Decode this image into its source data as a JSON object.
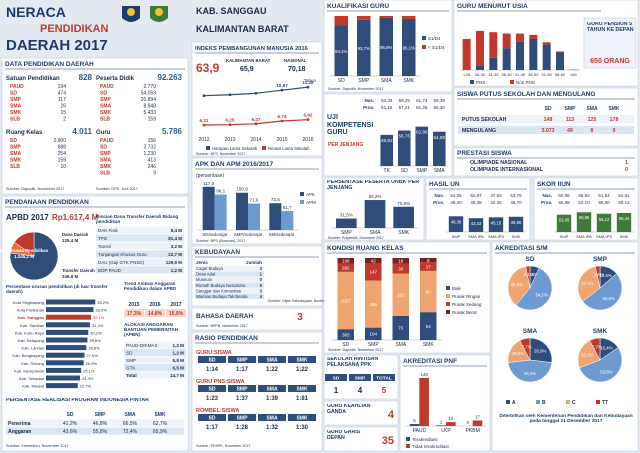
{
  "header": {
    "title_1": "NERACA",
    "title_2": "PENDIDIKAN",
    "title_3": "DAERAH 2017",
    "region": "KAB. SANGGAU",
    "province": "KALIMANTAN BARAT"
  },
  "data_pendidikan": {
    "title": "DATA PENDIDIKAN DAERAH",
    "satuan": {
      "label": "Satuan Pendidikan",
      "total": "828",
      "rows": [
        [
          "PAUD",
          "194"
        ],
        [
          "SD",
          "474"
        ],
        [
          "SMP",
          "117"
        ],
        [
          "SMA",
          "26"
        ],
        [
          "SMK",
          "15"
        ],
        [
          "SLB",
          "2"
        ]
      ]
    },
    "peserta": {
      "label": "Peserta Didik",
      "total": "92.263",
      "rows": [
        [
          "PAUD",
          "2.770"
        ],
        [
          "SD",
          "54.059"
        ],
        [
          "SMP",
          "20.894"
        ],
        [
          "SMA",
          "8.948"
        ],
        [
          "SMK",
          "5.433"
        ],
        [
          "SLB",
          "159"
        ]
      ]
    },
    "ruang": {
      "label": "Ruang Kelas",
      "total": "4.011",
      "rows": [
        [
          "SD",
          "2.900"
        ],
        [
          "SMP",
          "688"
        ],
        [
          "SMA",
          "254"
        ],
        [
          "SMK",
          "159"
        ],
        [
          "SLB",
          "10"
        ]
      ]
    },
    "guru": {
      "label": "Guru",
      "total": "5.786",
      "rows": [
        [
          "PAUD",
          "156"
        ],
        [
          "SD",
          "3.732"
        ],
        [
          "SMP",
          "1.230"
        ],
        [
          "SMA",
          "413"
        ],
        [
          "SMK",
          "246"
        ],
        [
          "SLB",
          "9"
        ]
      ]
    },
    "source_1": "Sumber: Dapodik, November 2017",
    "source_2": "Sumber: DPS, Juni 2017"
  },
  "pendanaan": {
    "title": "PENDANAAN PENDIDIKAN",
    "apbd_label": "APBD 2017",
    "apbd_total": "Rp1.617,4 M",
    "pie": {
      "type": "pie",
      "labels": [
        "Non Urusan Pendidikan",
        "Dana Daerah",
        "Transfer Daerah"
      ],
      "values": [
        1245.2,
        125.4,
        246.8
      ],
      "value_labels": [
        "1.245,2 M",
        "125,4 M",
        "246,8 M"
      ],
      "colors": [
        "#2e4d7b",
        "#e8743b",
        "#c0392b"
      ]
    },
    "rincian_title": "Rincian Dana Transfer Daerah Bidang pendidikan",
    "rincian": [
      [
        "DAK Fisik",
        "8,4 M"
      ],
      [
        "TPG",
        "81,4 M"
      ],
      [
        "Tamsil",
        "3,2 M"
      ],
      [
        "Tunjangan Khusus Guru",
        "22,7 M"
      ],
      [
        "DAU (Gaji GTK PNSD)",
        "129,9 M"
      ],
      [
        "BOP PAUD",
        "1,2 M"
      ]
    ],
    "urusan": {
      "type": "bar",
      "title": "Persentase urusan pendidikan (di luar transfer daerah)",
      "categories": [
        "Kota Singkawang",
        "Kota Pontianak",
        "Kab. Sanggau",
        "Kab. Sambas",
        "Kab. Kubu Raya",
        "Kab. Ketapang",
        "Kab. Landak",
        "Kab. Bengkayang",
        "Kab. Sintang",
        "Kab. Mempawah",
        "Kab. Sekadau",
        "Kab. Melawi"
      ],
      "values": [
        35.2,
        33.9,
        32.1,
        31.4,
        30.2,
        29.6,
        28.8,
        27.5,
        26.9,
        25.1,
        24.3,
        22.7
      ],
      "value_labels": [
        "35,2%",
        "33,9%",
        "32,1%",
        "31,4%",
        "30,2%",
        "29,6%",
        "28,8%",
        "27,5%",
        "26,9%",
        "25,1%",
        "24,3%",
        "22,7%"
      ],
      "xlim": [
        0,
        40
      ],
      "color": "#2e4d7b",
      "highlight": 2,
      "highlight_color": "#c0392b"
    },
    "trend": {
      "title": "Trend Alokasi Anggaran Pendidikan dalam APBD",
      "years": [
        "2015",
        "2016",
        "2017"
      ],
      "values": [
        "17,3%",
        "14,8%",
        "15,0%"
      ]
    },
    "apbn": {
      "title": "ALOKASI ANGGARAN BANTUAN PEMERINTAH (APBN)",
      "rows": [
        [
          "PAUD-DIKMAS",
          "1,2 M"
        ],
        [
          "SD",
          "1,2 M"
        ],
        [
          "SMP",
          "5,8 M"
        ],
        [
          "GTK",
          "6,5 M"
        ],
        [
          "Total",
          "14,7 M"
        ]
      ]
    },
    "pip": {
      "title": "PERSENTASE REALISASI PROGRAM INDONESIA PINTAR",
      "header": [
        "SD",
        "SMP",
        "SMA",
        "SMK"
      ],
      "rows": [
        [
          "Penerima",
          "41,2%",
          "46,8%",
          "66,5%",
          "62,7%"
        ],
        [
          "Anggaran",
          "43,6%",
          "55,8%",
          "72,4%",
          "65,9%"
        ]
      ]
    },
    "source": "Sumber: Kemenkeu, November 2017"
  },
  "ipm": {
    "title": "INDEKS PEMBANGUNAN MANUSIA 2016",
    "value": "63,9",
    "prov_label": "KALIMANTAN BARAT",
    "prov_value": "65,9",
    "nas_label": "NASIONAL",
    "nas_value": "70,18",
    "chart": {
      "type": "line",
      "x": [
        "2012",
        "2013",
        "2014",
        "2015",
        "2016"
      ],
      "ylim": [
        5,
        12.5
      ],
      "unit": "Tahun",
      "series": [
        {
          "name": "Harapan Lama Sekolah",
          "color": "#2e4d7b",
          "values": [
            10.13,
            10.26,
            10.45,
            10.87,
            11.28
          ],
          "value_labels": [
            null,
            null,
            null,
            "10,87",
            "11,28"
          ]
        },
        {
          "name": "Rerata Lama Sekolah",
          "color": "#c0392b",
          "values": [
            6.21,
            6.25,
            6.37,
            6.74,
            6.92
          ],
          "value_labels": [
            "6,21",
            "6,25",
            "6,37",
            "6,74",
            "6,92"
          ]
        }
      ]
    },
    "source": "Sumber: BPS, November 2017"
  },
  "apk": {
    "type": "bar",
    "title": "APK DAN APM 2016/2017",
    "subtitle": "(persentase)",
    "categories": [
      "SD/sederajat",
      "SMP/sederajat",
      "SM/sederajat"
    ],
    "ylim": [
      0,
      130
    ],
    "series": [
      {
        "name": "APK",
        "color": "#2e4d7b",
        "values": [
          117.0,
          100.9,
          72.5
        ],
        "value_labels": [
          "117,0",
          "100,9",
          "72,5"
        ]
      },
      {
        "name": "APM",
        "color": "#6d9bd1",
        "values": [
          96.1,
          71.6,
          51.7
        ],
        "value_labels": [
          "96,1",
          "71,6",
          "51,7"
        ]
      }
    ],
    "source": "Sumber: BPS (Susenas), 2017"
  },
  "kebudayaan": {
    "title": "KEBUDAYAAN",
    "header": [
      "Jenis",
      "Jumlah"
    ],
    "rows": [
      [
        "Cagar Budaya",
        "3"
      ],
      [
        "Desa Adat",
        "1"
      ],
      [
        "Museum",
        "0"
      ],
      [
        "Rumah Budaya Nusantara",
        "0"
      ],
      [
        "Sanggar dan Komunitas",
        "3"
      ],
      [
        "Warisan Budaya Tak Benda",
        "4"
      ]
    ],
    "source": "Sumber: Ditjen Kebudayaan, November 2017"
  },
  "bahasa": {
    "title": "BAHASA DAERAH",
    "value": "3",
    "source": "Sumber: BPPB, November 2017"
  },
  "rasio": {
    "title": "RASIO PENDIDIKAN",
    "header": [
      "SD",
      "SMP",
      "SMA",
      "SMK"
    ],
    "groups": [
      {
        "label": "GURU:SISWA",
        "values": [
          "1:14",
          "1:17",
          "1:22",
          "1:22"
        ]
      },
      {
        "label": "GURU PNS:SISWA",
        "values": [
          "1:23",
          "1:37",
          "1:39",
          "1:81"
        ]
      },
      {
        "label": "ROMBEL:SISWA",
        "values": [
          "1:17",
          "1:28",
          "1:32",
          "1:30"
        ]
      }
    ],
    "source": "Sumber: PDSPK, November 2017"
  },
  "kualifikasi": {
    "type": "bar",
    "stacked": true,
    "title": "KUALIFIKASI GURU",
    "categories": [
      "SD",
      "SMP",
      "SMA",
      "SMK"
    ],
    "ylim": [
      0,
      100
    ],
    "series": [
      {
        "name": "S1/D4",
        "color": "#2e4d7b",
        "values": [
          84.1,
          93.7,
          96.8,
          95.1
        ],
        "value_labels": [
          "84,1%",
          "93,7%",
          "96,8%",
          "95,1%"
        ]
      },
      {
        "name": "< S1/D4",
        "color": "#c0392b",
        "values": [
          15.9,
          6.3,
          3.2,
          4.9
        ]
      }
    ],
    "source": "Sumber: Dapodik, November 2017"
  },
  "ukg": {
    "type": "bar",
    "title": "UJI KOMPETENSI GURU",
    "subtitle": "PER JENJANG",
    "categories": [
      "TK",
      "SD",
      "SMP",
      "SMA"
    ],
    "ylim": [
      0,
      80
    ],
    "color": "#2e4d7b",
    "values": [
      49.82,
      56.75,
      62.95,
      54.8
    ],
    "value_labels": [
      "49,82",
      "56,75",
      "62,95",
      "54,80"
    ],
    "compare": [
      [
        "Nas.",
        "54,33",
        "59,25",
        "61,74",
        "58,38"
      ],
      [
        "Prov.",
        "51,15",
        "57,21",
        "61,26",
        "55,30"
      ]
    ]
  },
  "unbk": {
    "type": "bar",
    "title": "PERSENTASE PESERTA UNBK PER JENJANG",
    "categories": [
      "SMP",
      "SMA",
      "SMK"
    ],
    "ylim": [
      0,
      100
    ],
    "color": "#2e4d7b",
    "values": [
      31.5,
      93.2,
      70.8
    ],
    "value_labels": [
      "31,5%",
      "93,2%",
      "70,8%"
    ],
    "source": "Sumber: Puspendik, November 2017"
  },
  "hasil_un": {
    "type": "bar",
    "title": "HASIL UN",
    "categories": [
      "SMP",
      "SMA IPA",
      "SMA IPS",
      "SMK"
    ],
    "ylim": [
      0,
      80
    ],
    "color": "#2e4d7b",
    "values": [
      48.38,
      42.43,
      45.15,
      46.9
    ],
    "value_labels": [
      "48,38",
      "42,43",
      "45,15",
      "46,90"
    ],
    "compare": [
      [
        "Nas.",
        "54,25",
        "52,87",
        "47,93",
        "53,75"
      ],
      [
        "Prov.",
        "46,40",
        "45,38",
        "42,35",
        "46,70"
      ]
    ]
  },
  "iiun": {
    "type": "bar",
    "title": "SKOR IIUN",
    "categories": [
      "SMP",
      "SMA IPA",
      "SMA IPS",
      "SMK"
    ],
    "ylim": [
      0,
      80
    ],
    "color": "#3f7a3a",
    "values": [
      53.45,
      60.85,
      56.12,
      58.44
    ],
    "value_labels": [
      "53,45",
      "60,85",
      "56,12",
      "58,44"
    ],
    "compare": [
      [
        "Nas.",
        "60,95",
        "65,92",
        "61,54",
        "62,61"
      ],
      [
        "Prov.",
        "55,98",
        "62,10",
        "58,90",
        "60,12"
      ]
    ]
  },
  "guru_usia": {
    "type": "bar",
    "stacked": true,
    "title": "GURU MENURUT USIA",
    "categories": [
      "<26",
      "26-30",
      "31-35",
      "36-40",
      "41-45",
      "46-50",
      "51-55",
      "56-60",
      ">60"
    ],
    "ylim": [
      0,
      800
    ],
    "series": [
      {
        "name": "PNS",
        "color": "#2e4d7b",
        "values": [
          10,
          60,
          180,
          320,
          420,
          460,
          380,
          260,
          5
        ]
      },
      {
        "name": "Non PNS",
        "color": "#c0392b",
        "values": [
          450,
          520,
          380,
          220,
          120,
          60,
          30,
          15,
          2
        ]
      }
    ],
    "pensiun_label": "GURU PENSIUN 5 TAHUN KE DEPAN",
    "pensiun_value": "650 ORANG"
  },
  "putus": {
    "title": "SISWA PUTUS SEKOLAH DAN MENGULANG",
    "header": [
      "SD",
      "SMP",
      "SMA",
      "SMK"
    ],
    "rows": [
      [
        "PUTUS SEKOLAH",
        "148",
        "113",
        "125",
        "178"
      ],
      [
        "MENGULANG",
        "3.073",
        "49",
        "8",
        "9"
      ]
    ]
  },
  "prestasi": {
    "title": "PRESTASI SISWA",
    "rows": [
      [
        "OLIMPIADE NASIONAL",
        "1"
      ],
      [
        "OLIMPIADE INTERNASIONAL",
        "0"
      ]
    ]
  },
  "kondisi": {
    "type": "bar",
    "stacked": "percent",
    "title": "KONDISI RUANG KELAS",
    "categories": [
      "SD",
      "SMP",
      "SMA",
      "SMK"
    ],
    "series": [
      {
        "name": "Baik",
        "color": "#2e4d7b",
        "values": [
          383,
          104,
          75,
          54
        ]
      },
      {
        "name": "Rusak Ringan",
        "color": "#f0a470",
        "values": [
          2027,
          395,
          131,
          80
        ]
      },
      {
        "name": "Rusak Sedang",
        "color": "#c0392b",
        "values": [
          292,
          147,
          30,
          17
        ]
      },
      {
        "name": "Rusak Berat",
        "color": "#7a1f1f",
        "values": [
          198,
          42,
          18,
          8
        ]
      }
    ],
    "source": "Sumber: Dapodik, November 2017"
  },
  "akreditasi": {
    "type": "pie",
    "title": "AKREDITASI S/M",
    "labels": [
      "A",
      "B",
      "C",
      "TT"
    ],
    "colors": [
      "#2e4d7b",
      "#6d9bd1",
      "#f0a470",
      "#c0392b"
    ],
    "charts": [
      {
        "name": "SD",
        "values": [
          6.8,
          54.2,
          35.9,
          3.1
        ],
        "value_labels": [
          "6,8%",
          "54,2%",
          "35,9%",
          "3,1%"
        ]
      },
      {
        "name": "SMP",
        "values": [
          13.6,
          50.9,
          32.1,
          3.4
        ],
        "value_labels": [
          "13,6%",
          "50,9%",
          "32,1%",
          "3,4%"
        ]
      },
      {
        "name": "SMA",
        "values": [
          26.9,
          46.2,
          19.2,
          7.7
        ],
        "value_labels": [
          "26,9%",
          "46,2%",
          "19,2%",
          "7,7%"
        ]
      },
      {
        "name": "SMK",
        "values": [
          15.4,
          53.8,
          23.1,
          7.7
        ],
        "value_labels": [
          "15,4%",
          "53,8%",
          "23,1%",
          "7,7%"
        ]
      }
    ]
  },
  "rintisan": {
    "title": "SEKOLAH RINTISAN PELAKSANA PPK",
    "header": [
      "SD",
      "SMP",
      "TOTAL"
    ],
    "values": [
      "1",
      "4",
      "5"
    ]
  },
  "keahlian": {
    "title": "GURU KEAHLIAN GANDA",
    "value": "4"
  },
  "garis_depan": {
    "title": "GURU GARIS DEPAN",
    "value": "35"
  },
  "pnf": {
    "type": "bar",
    "title": "AKREDITASI PNF",
    "categories": [
      "PAUD",
      "LKP",
      "PKBM"
    ],
    "ylim": [
      0,
      160
    ],
    "series": [
      {
        "name": "Terakreditasi",
        "color": "#2e4d7b",
        "values": [
          6,
          2,
          0
        ],
        "value_labels": [
          "6",
          "2",
          "0"
        ]
      },
      {
        "name": "Tidak terakreditasi",
        "color": "#c0392b",
        "values": [
          148,
          12,
          17
        ],
        "value_labels": [
          "148",
          "12",
          "17"
        ]
      }
    ]
  },
  "footer": "Diterbitkan oleh Kementerian Pendidikan dan Kebudayaan pada tanggal 21 Desember 2017"
}
